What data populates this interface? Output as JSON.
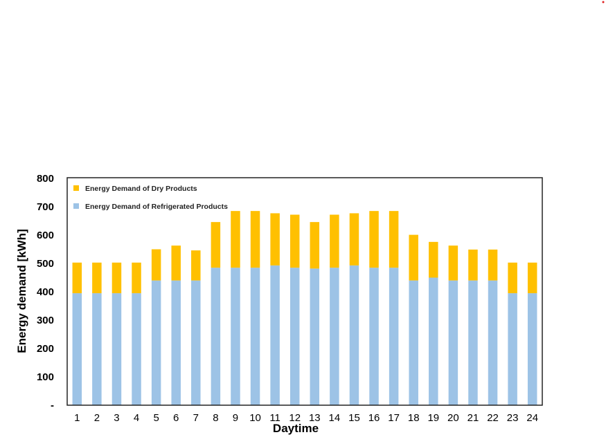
{
  "chart_data": {
    "type": "bar",
    "stacked": true,
    "xlabel": "Daytime",
    "ylabel": "Energy demand [kWh]",
    "ylim": [
      0,
      800
    ],
    "yticks": [
      0,
      100,
      200,
      300,
      400,
      500,
      600,
      700,
      800
    ],
    "ytick_labels": [
      "-",
      "100",
      "200",
      "300",
      "400",
      "500",
      "600",
      "700",
      "800"
    ],
    "grid": false,
    "legend_position": "top-left",
    "categories": [
      "1",
      "2",
      "3",
      "4",
      "5",
      "6",
      "7",
      "8",
      "9",
      "10",
      "11",
      "12",
      "13",
      "14",
      "15",
      "16",
      "17",
      "18",
      "19",
      "20",
      "21",
      "22",
      "23",
      "24"
    ],
    "series": [
      {
        "name": "Energy Demand of Refrigerated Products",
        "color": "#9DC3E6",
        "values": [
          395,
          395,
          395,
          395,
          440,
          440,
          440,
          485,
          485,
          485,
          493,
          485,
          482,
          485,
          493,
          485,
          485,
          440,
          450,
          440,
          440,
          440,
          395,
          395
        ]
      },
      {
        "name": "Energy Demand of Dry Products",
        "color": "#FFC000",
        "values": [
          108,
          108,
          108,
          108,
          110,
          123,
          106,
          161,
          200,
          200,
          184,
          187,
          164,
          187,
          184,
          200,
          200,
          161,
          126,
          123,
          109,
          109,
          108,
          108
        ]
      }
    ],
    "legend_order": [
      1,
      0
    ]
  }
}
